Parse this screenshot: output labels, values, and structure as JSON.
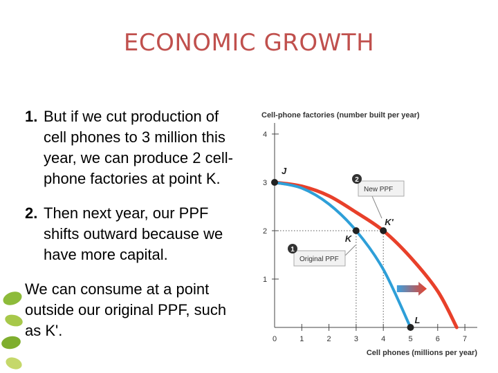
{
  "slide": {
    "title": "ECONOMIC GROWTH",
    "title_color": "#c0504d",
    "bullets": [
      {
        "num": "1.",
        "text": "But if we cut production of cell phones to 3 million this year, we can produce 2 cell-phone factories at point K."
      },
      {
        "num": "2.",
        "text": "Then next year, our PPF shifts outward because we have more capital."
      },
      {
        "num": "",
        "text": "We can consume at a point outside our original PPF, such as K'."
      }
    ],
    "decoration_icon": "green-leaf-icon"
  },
  "chart_data": {
    "type": "line",
    "xlabel": "Cell phones (millions per year)",
    "ylabel": "Cell-phone factories (number built per year)",
    "xlim": [
      0,
      7
    ],
    "ylim": [
      0,
      4
    ],
    "x_ticks": [
      "0",
      "1",
      "2",
      "3",
      "4",
      "5",
      "6",
      "7"
    ],
    "y_ticks": [
      "1",
      "2",
      "3",
      "4"
    ],
    "grid": false,
    "series": [
      {
        "name": "Original PPF",
        "callout_number": "1",
        "color": "#2e9fd8",
        "points": [
          [
            0,
            3.0
          ],
          [
            1,
            2.88
          ],
          [
            2,
            2.55
          ],
          [
            3,
            2.0
          ],
          [
            4,
            1.2
          ],
          [
            5,
            0.0
          ]
        ]
      },
      {
        "name": "New PPF",
        "callout_number": "2",
        "color": "#e8402a",
        "points": [
          [
            0,
            3.0
          ],
          [
            1,
            2.92
          ],
          [
            2,
            2.72
          ],
          [
            3,
            2.38
          ],
          [
            4,
            2.0
          ],
          [
            5,
            1.45
          ],
          [
            6,
            0.75
          ],
          [
            6.7,
            0.0
          ]
        ]
      }
    ],
    "points": [
      {
        "label": "J",
        "x": 0,
        "y": 3
      },
      {
        "label": "K",
        "x": 3,
        "y": 2
      },
      {
        "label": "K'",
        "x": 4,
        "y": 2
      },
      {
        "label": "L",
        "x": 5,
        "y": 0
      }
    ],
    "shift_arrow": {
      "from": 4.5,
      "to": 5.6,
      "at_y": 0.8
    }
  }
}
